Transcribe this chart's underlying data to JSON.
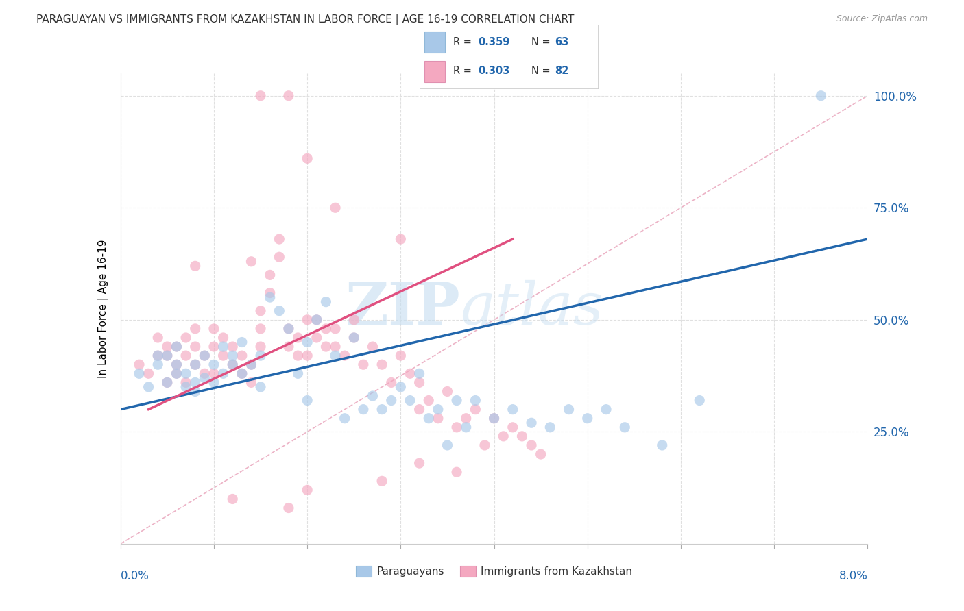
{
  "title": "PARAGUAYAN VS IMMIGRANTS FROM KAZAKHSTAN IN LABOR FORCE | AGE 16-19 CORRELATION CHART",
  "source": "Source: ZipAtlas.com",
  "ylabel": "In Labor Force | Age 16-19",
  "watermark_zip": "ZIP",
  "watermark_atlas": "atlas",
  "xmin": 0.0,
  "xmax": 0.08,
  "ymin": 0.0,
  "ymax": 1.05,
  "blue_color": "#a8c8e8",
  "pink_color": "#f4a8c0",
  "blue_line_color": "#2166ac",
  "pink_line_color": "#e05080",
  "text_blue": "#2166ac",
  "text_pink": "#2166ac",
  "grid_color": "#e0e0e0",
  "ref_line_color": "#d0d0d0",
  "legend1_r": "0.359",
  "legend1_n": "63",
  "legend2_r": "0.303",
  "legend2_n": "82",
  "ytick_labels": [
    "25.0%",
    "50.0%",
    "75.0%",
    "100.0%"
  ],
  "ytick_values": [
    0.25,
    0.5,
    0.75,
    1.0
  ],
  "blue_line_x0": 0.0,
  "blue_line_x1": 0.08,
  "blue_line_y0": 0.3,
  "blue_line_y1": 0.68,
  "pink_line_x0": 0.003,
  "pink_line_x1": 0.042,
  "pink_line_y0": 0.3,
  "pink_line_y1": 0.68,
  "ref_line_x0": 0.0,
  "ref_line_x1": 0.08,
  "ref_line_y0": 0.0,
  "ref_line_y1": 1.0
}
